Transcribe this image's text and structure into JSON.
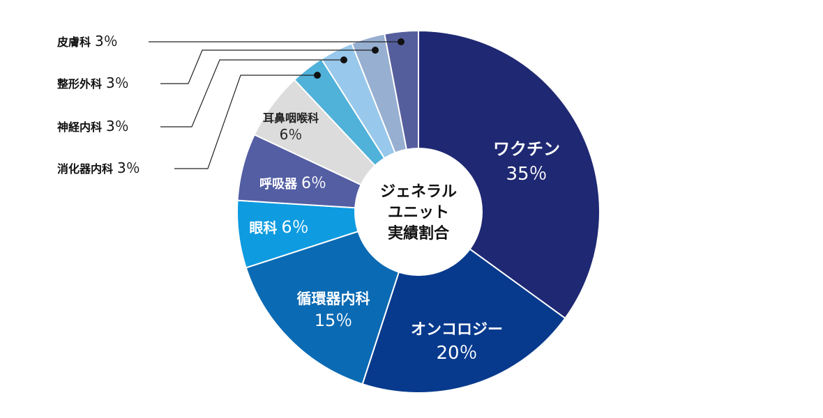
{
  "chart_data": {
    "type": "pie",
    "variant": "donut",
    "center_label": [
      "ジェネラル",
      "ユニット",
      "実績割合"
    ],
    "unit": "％",
    "slices": [
      {
        "name": "ワクチン",
        "value": 35,
        "value_label": "35％",
        "color": "#1f2872"
      },
      {
        "name": "オンコロジー",
        "value": 20,
        "value_label": "20％",
        "color": "#073a8d"
      },
      {
        "name": "循環器内科",
        "value": 15,
        "value_label": "15％",
        "color": "#0a6ab3"
      },
      {
        "name": "眼科",
        "value": 6,
        "value_label": "6％",
        "color": "#0e9be0"
      },
      {
        "name": "呼吸器",
        "value": 6,
        "value_label": "6％",
        "color": "#535ea3"
      },
      {
        "name": "耳鼻咽喉科",
        "value": 6,
        "value_label": "6％",
        "color": "#dcdcdc"
      },
      {
        "name": "消化器内科",
        "value": 3,
        "value_label": "3％",
        "color": "#50b1d9"
      },
      {
        "name": "神経内科",
        "value": 3,
        "value_label": "3％",
        "color": "#98c8eb"
      },
      {
        "name": "整形外科",
        "value": 3,
        "value_label": "3％",
        "color": "#97afd0"
      },
      {
        "name": "皮膚科",
        "value": 3,
        "value_label": "3％",
        "color": "#555e9c"
      }
    ]
  }
}
